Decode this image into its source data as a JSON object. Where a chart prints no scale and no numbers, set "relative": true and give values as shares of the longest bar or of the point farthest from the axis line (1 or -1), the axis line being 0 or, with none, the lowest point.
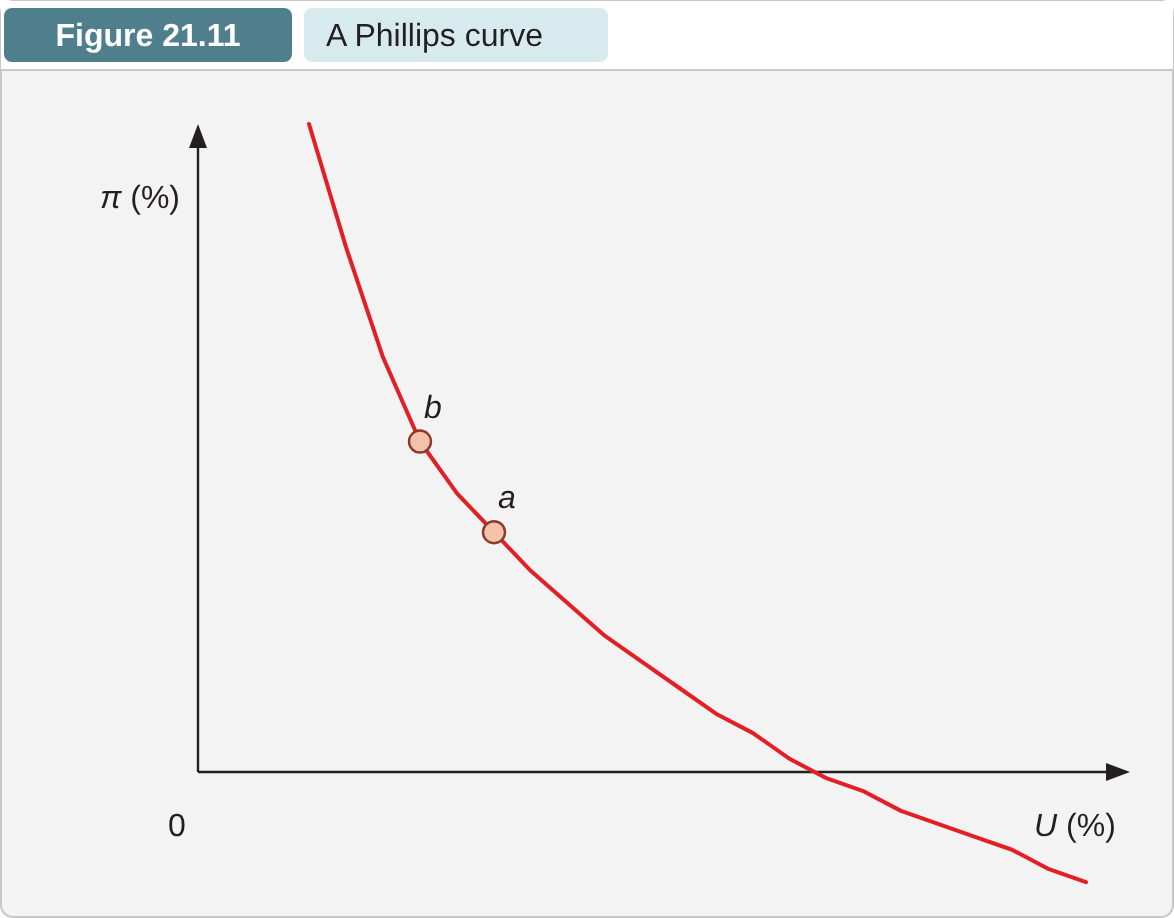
{
  "chart_data": {
    "type": "line",
    "title": "A Phillips curve",
    "subtitle": "Figure 21.11",
    "xlabel": "U (%)",
    "ylabel": "π (%)",
    "relative": true,
    "marker": "none",
    "annotations": [
      "0",
      {
        "text": "b",
        "y": 0.51
      },
      {
        "text": "a",
        "y": 0.37
      }
    ],
    "categories": [
      null,
      null,
      null,
      null,
      null,
      null,
      null,
      null,
      null,
      null,
      null,
      null,
      null,
      null,
      null,
      null,
      null,
      null,
      null,
      null,
      null,
      null
    ],
    "series": [
      {
        "color": "#e31e24",
        "values": [
          1,
          0.81,
          0.64,
          0.51,
          0.43,
          0.37,
          0.31,
          0.26,
          0.21,
          0.17,
          0.13,
          0.09,
          0.06,
          0.02,
          -0.01,
          -0.03,
          -0.06,
          -0.08,
          -0.1,
          -0.12,
          -0.15,
          -0.17
        ]
      }
    ]
  }
}
